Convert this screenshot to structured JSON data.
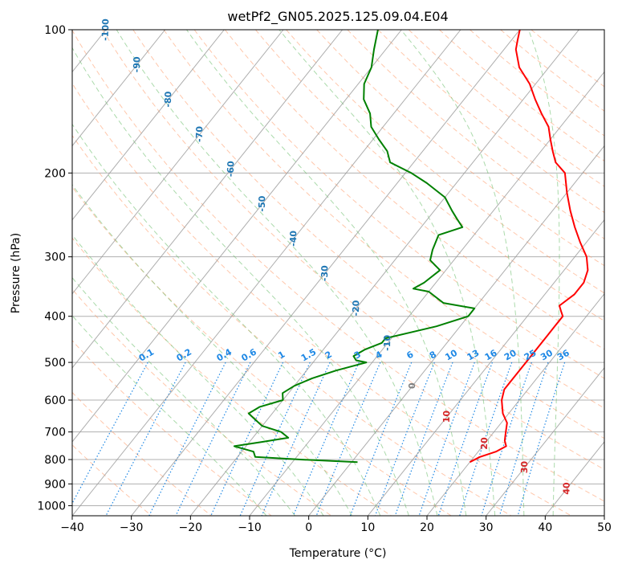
{
  "chart_data": {
    "type": "line",
    "title": "wetPf2_GN05.2025.125.09.04.E04",
    "xlabel": "Temperature (°C)",
    "ylabel": "Pressure (hPa)",
    "xlim": [
      -40,
      50
    ],
    "ylim": [
      1050,
      100
    ],
    "y_scale": "log",
    "skew": true,
    "grid": true,
    "x_ticks": [
      -40,
      -30,
      -20,
      -10,
      0,
      10,
      20,
      30,
      40,
      50
    ],
    "y_ticks": [
      100,
      200,
      300,
      400,
      500,
      600,
      700,
      800,
      900,
      1000
    ],
    "colors": {
      "temperature": "#ff0000",
      "dewpoint": "#008000",
      "isotherm": "#999999",
      "dry_adiabat": "#ff9966",
      "moist_adiabat": "#66bb66",
      "mixing_ratio": "#1e88e5",
      "isotherm_label": "#1f77b4",
      "warm_label": "#d62728",
      "zero_label": "#808080",
      "boundary": "#d9c3a0"
    },
    "isotherm_labels": [
      {
        "t": -100,
        "text": "-100"
      },
      {
        "t": -90,
        "text": "-90"
      },
      {
        "t": -80,
        "text": "-80"
      },
      {
        "t": -70,
        "text": "-70"
      },
      {
        "t": -60,
        "text": "-60"
      },
      {
        "t": -50,
        "text": "-50"
      },
      {
        "t": -40,
        "text": "-40"
      },
      {
        "t": -30,
        "text": "-30"
      },
      {
        "t": -20,
        "text": "-20"
      },
      {
        "t": -10,
        "text": "-10"
      },
      {
        "t": 0,
        "text": "0"
      },
      {
        "t": 10,
        "text": "10"
      },
      {
        "t": 20,
        "text": "20"
      },
      {
        "t": 30,
        "text": "30"
      },
      {
        "t": 40,
        "text": "40"
      }
    ],
    "mixing_ratio_labels": [
      {
        "w": 0.1,
        "text": "0.1"
      },
      {
        "w": 0.2,
        "text": "0.2"
      },
      {
        "w": 0.4,
        "text": "0.4"
      },
      {
        "w": 0.6,
        "text": "0.6"
      },
      {
        "w": 1,
        "text": "1"
      },
      {
        "w": 1.5,
        "text": "1.5"
      },
      {
        "w": 2,
        "text": "2"
      },
      {
        "w": 3,
        "text": "3"
      },
      {
        "w": 4,
        "text": "4"
      },
      {
        "w": 6,
        "text": "6"
      },
      {
        "w": 8,
        "text": "8"
      },
      {
        "w": 10,
        "text": "10"
      },
      {
        "w": 13,
        "text": "13"
      },
      {
        "w": 16,
        "text": "16"
      },
      {
        "w": 20,
        "text": "20"
      },
      {
        "w": 25,
        "text": "25"
      },
      {
        "w": 30,
        "text": "30"
      },
      {
        "w": 36,
        "text": "36"
      }
    ],
    "series": [
      {
        "p": [
          810,
          790,
          770,
          750,
          730,
          700,
          670,
          640,
          600,
          570,
          540,
          500,
          470,
          440,
          420,
          400,
          390,
          380,
          360,
          340,
          320,
          300,
          280,
          260,
          240,
          220,
          200,
          190,
          180,
          170,
          160,
          150,
          140,
          130,
          120,
          110,
          105,
          100
        ],
        "t": [
          20,
          21,
          23,
          24,
          23,
          22,
          21,
          19,
          17,
          16,
          16,
          16,
          16,
          16,
          16,
          16,
          15,
          14,
          15,
          15,
          14,
          12,
          9,
          6,
          3,
          0,
          -3,
          -6,
          -8,
          -10,
          -12,
          -15,
          -18,
          -21,
          -25,
          -28,
          -29,
          -30
        ]
      },
      {
        "p": [
          810,
          800,
          790,
          770,
          750,
          735,
          720,
          700,
          680,
          660,
          640,
          620,
          600,
          580,
          560,
          540,
          520,
          505,
          500,
          495,
          485,
          470,
          455,
          445,
          420,
          400,
          385,
          375,
          355,
          350,
          340,
          320,
          305,
          290,
          270,
          260,
          250,
          240,
          225,
          210,
          200,
          190,
          180,
          170,
          160,
          150,
          140,
          130,
          120,
          110,
          100
        ],
        "t": [
          1,
          -9,
          -17,
          -18,
          -22,
          -18,
          -14,
          -16,
          -20,
          -22,
          -24,
          -23,
          -20,
          -21,
          -20,
          -18,
          -15,
          -12,
          -11,
          -13,
          -14,
          -13,
          -11,
          -11,
          -4,
          0,
          0,
          -6,
          -10,
          -13,
          -12,
          -11,
          -14,
          -15,
          -16,
          -13,
          -15,
          -17,
          -20,
          -25,
          -29,
          -34,
          -36,
          -39,
          -42,
          -44,
          -47,
          -49,
          -50,
          -52,
          -54
        ]
      }
    ]
  }
}
